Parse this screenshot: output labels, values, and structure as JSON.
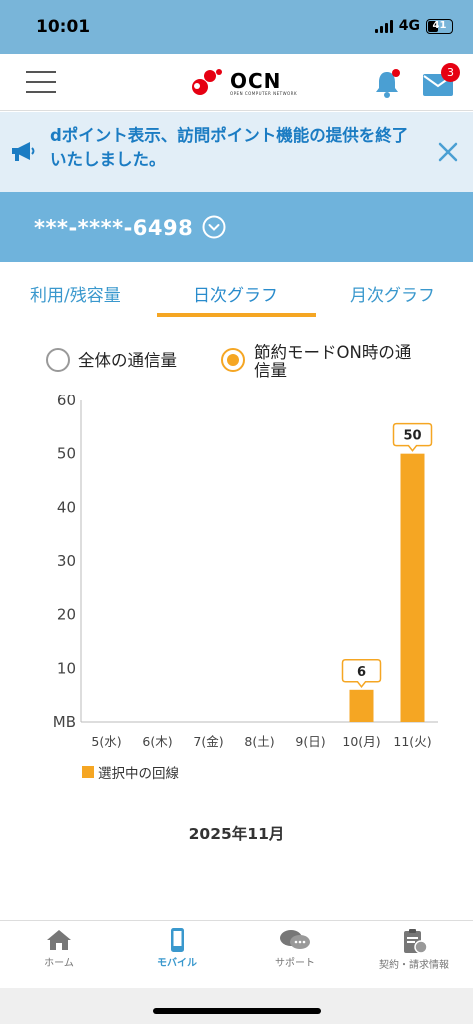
{
  "status_bar": {
    "time": "10:01",
    "network": "4G",
    "battery": "41"
  },
  "header": {
    "logo_text": "OCN",
    "logo_sub": "OPEN COMPUTER NETWORK",
    "mail_badge": "3"
  },
  "notice": {
    "text": "dポイント表示、訪問ポイント機能の提供を終了いたしました。"
  },
  "line": {
    "number": "***-****-6498"
  },
  "tabs": [
    {
      "label": "利用/残容量"
    },
    {
      "label": "日次グラフ"
    },
    {
      "label": "月次グラフ"
    }
  ],
  "filter": {
    "option_all": "全体の通信量",
    "option_saving_line1": "節約モードON時の通",
    "option_saving_line2": "信量",
    "selected": "節約モードON時の通信量"
  },
  "chart_data": {
    "type": "bar",
    "categories": [
      "5(水)",
      "6(木)",
      "7(金)",
      "8(土)",
      "9(日)",
      "10(月)",
      "11(火)"
    ],
    "series": [
      {
        "name": "選択中の回線",
        "values": [
          0,
          0,
          0,
          0,
          0,
          6,
          50
        ]
      }
    ],
    "data_labels": [
      "",
      "",
      "",
      "",
      "",
      "6",
      "50"
    ],
    "y_ticks": [
      "60",
      "50",
      "40",
      "30",
      "20",
      "10",
      "MB"
    ],
    "y_tick_values": [
      60,
      50,
      40,
      30,
      20,
      10,
      0
    ],
    "ylim": [
      0,
      60
    ],
    "bar_color": "#f5a623",
    "legend": "選択中の回線",
    "legend_position": "bottom-left",
    "grid": false
  },
  "month_label": "2025年11月",
  "bottom_nav": [
    {
      "label": "ホーム",
      "icon": "home-icon"
    },
    {
      "label": "モバイル",
      "icon": "mobile-icon"
    },
    {
      "label": "サポート",
      "icon": "chat-icon"
    },
    {
      "label": "契約・請求情報",
      "icon": "clipboard-icon"
    }
  ],
  "colors": {
    "accent": "#f5a623",
    "brand_blue": "#3a98cd",
    "status_blue": "#79b5d9"
  }
}
